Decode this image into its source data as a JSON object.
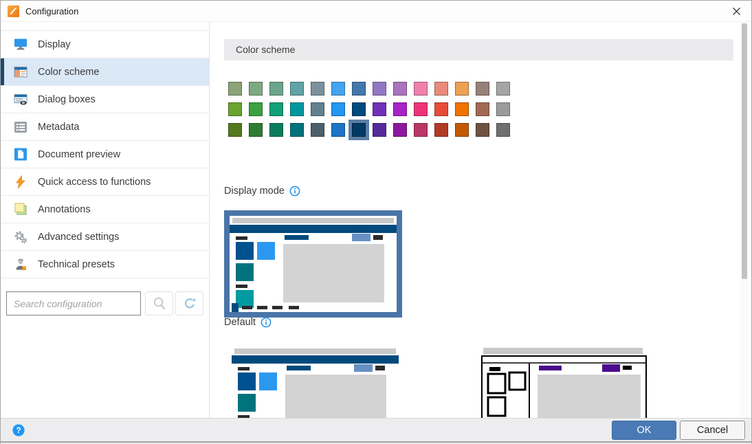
{
  "window": {
    "title": "Configuration"
  },
  "colors": {
    "accent_blue": "#2196f3",
    "swatch_selection": "#5b7fa6",
    "sidebar_selected_bg": "#dbe8f6",
    "sidebar_selected_accent": "#1a4a70",
    "ok_button_bg": "#4a7ab5",
    "ok_button_border": "#3f6ba3"
  },
  "sidebar": {
    "items": [
      {
        "label": "Display",
        "icon": "display-icon",
        "selected": false
      },
      {
        "label": "Color scheme",
        "icon": "color-scheme-icon",
        "selected": true
      },
      {
        "label": "Dialog boxes",
        "icon": "dialog-boxes-icon",
        "selected": false
      },
      {
        "label": "Metadata",
        "icon": "metadata-icon",
        "selected": false
      },
      {
        "label": "Document preview",
        "icon": "document-preview-icon",
        "selected": false
      },
      {
        "label": "Quick access to functions",
        "icon": "quick-access-icon",
        "selected": false
      },
      {
        "label": "Annotations",
        "icon": "annotations-icon",
        "selected": false
      },
      {
        "label": "Advanced settings",
        "icon": "advanced-settings-icon",
        "selected": false
      },
      {
        "label": "Technical presets",
        "icon": "technical-presets-icon",
        "selected": false
      }
    ],
    "search": {
      "placeholder": "Search configuration"
    }
  },
  "main": {
    "section_title": "Color scheme",
    "display_mode_label": "Display mode",
    "swatches": {
      "selected": {
        "row": 2,
        "col": 6
      },
      "rows": [
        [
          "#8ca377",
          "#7da981",
          "#6aa58c",
          "#62a3a7",
          "#7b909b",
          "#45a4ef",
          "#4478ad",
          "#9277c4",
          "#aa73bd",
          "#ef81ad",
          "#e98a7b",
          "#eda153",
          "#97807a",
          "#a5a5a5"
        ],
        [
          "#6aa32f",
          "#3ca140",
          "#11a078",
          "#00989e",
          "#63808e",
          "#2497f2",
          "#004a80",
          "#7030b8",
          "#a723c5",
          "#ee3479",
          "#e84c38",
          "#f07300",
          "#a26a55",
          "#9b9b9b"
        ],
        [
          "#54791f",
          "#2e7d33",
          "#0b7d5d",
          "#00737a",
          "#4d5f6a",
          "#1c75c7",
          "#003a66",
          "#552a9b",
          "#8c189e",
          "#ba3766",
          "#b23b28",
          "#c25a04",
          "#6f5243",
          "#6f6f6f"
        ]
      ]
    },
    "previews": [
      {
        "id": "default",
        "label": "Default",
        "selected": true,
        "mode": "color",
        "frame_color": "#4a74a8",
        "colors": {
          "titlebar": "#c9c9c9",
          "menubar": "#004a7d",
          "tile1": "#00518f",
          "tile2": "#2b99f0",
          "tile3": "#00747c",
          "tile4": "#009aa1",
          "bars": "#2b2b2b",
          "chip": "#6690c4",
          "content": "#d3d3d3"
        }
      },
      {
        "id": "preview-2",
        "selected": false,
        "mode": "color",
        "colors": {
          "titlebar": "#c9c9c9",
          "menubar": "#004a7d",
          "tile1": "#00518f",
          "tile2": "#2b99f0",
          "tile3": "#00747c",
          "tile4": "#009aa1",
          "bars": "#2b2b2b",
          "chip": "#6690c4",
          "content": "#d3d3d3"
        }
      },
      {
        "id": "preview-3",
        "selected": false,
        "mode": "outline",
        "colors": {
          "titlebar": "#c9c9c9",
          "accent": "#4a0d8e",
          "outline": "#000000",
          "content": "#d3d3d3"
        }
      }
    ]
  },
  "footer": {
    "ok_label": "OK",
    "cancel_label": "Cancel"
  }
}
